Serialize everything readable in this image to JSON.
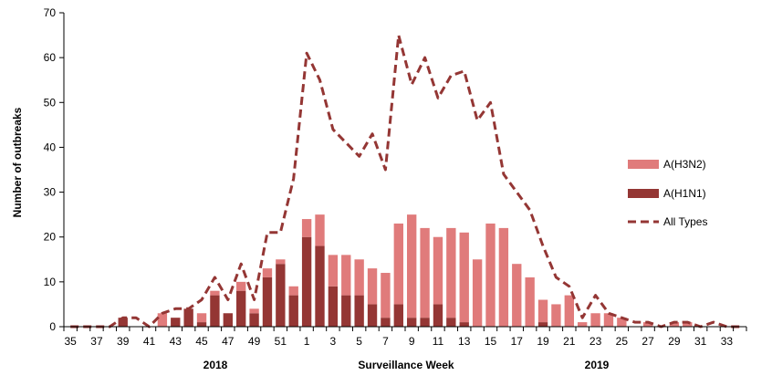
{
  "chart_data": {
    "type": "bar",
    "ylabel": "Number of outbreaks",
    "xlabel": "Surveillance Week",
    "year_labels": [
      "2018",
      "2019"
    ],
    "ylim": [
      0,
      70
    ],
    "yticks": [
      0,
      10,
      20,
      30,
      40,
      50,
      60,
      70
    ],
    "categories": [
      "35",
      "36",
      "37",
      "38",
      "39",
      "40",
      "41",
      "42",
      "43",
      "44",
      "45",
      "46",
      "47",
      "48",
      "49",
      "50",
      "51",
      "52",
      "1",
      "2",
      "3",
      "4",
      "5",
      "6",
      "7",
      "8",
      "9",
      "10",
      "11",
      "12",
      "13",
      "14",
      "15",
      "16",
      "17",
      "18",
      "19",
      "20",
      "21",
      "22",
      "23",
      "24",
      "25",
      "26",
      "27",
      "28",
      "29",
      "30",
      "31",
      "32",
      "33",
      "34"
    ],
    "tick_labels": [
      "35",
      "37",
      "39",
      "41",
      "43",
      "45",
      "47",
      "49",
      "51",
      "1",
      "3",
      "5",
      "7",
      "9",
      "11",
      "13",
      "15",
      "17",
      "19",
      "21",
      "23",
      "25",
      "27",
      "29",
      "31",
      "33"
    ],
    "legend_position": "right",
    "series": [
      {
        "name": "A(H1N1)",
        "kind": "stacked-bar",
        "color": "#943634",
        "values": [
          0,
          0,
          0,
          0,
          2,
          0,
          0,
          0,
          2,
          4,
          1,
          7,
          3,
          8,
          3,
          11,
          14,
          7,
          20,
          18,
          9,
          7,
          7,
          5,
          2,
          5,
          2,
          2,
          5,
          2,
          1,
          0,
          0,
          0,
          0,
          0,
          1,
          0,
          0,
          0,
          0,
          0,
          0,
          0,
          0,
          0,
          0,
          0,
          0,
          0,
          0,
          0
        ]
      },
      {
        "name": "A(H3N2)",
        "kind": "stacked-bar",
        "color": "#e07b7b",
        "values": [
          0,
          0,
          0,
          0,
          0,
          0,
          0,
          3,
          0,
          0,
          2,
          1,
          0,
          2,
          1,
          2,
          1,
          2,
          4,
          7,
          7,
          9,
          8,
          8,
          10,
          18,
          23,
          20,
          15,
          20,
          20,
          15,
          23,
          22,
          14,
          11,
          5,
          5,
          7,
          1,
          3,
          3,
          2,
          0,
          1,
          0,
          1,
          1,
          0,
          0,
          0,
          0
        ]
      },
      {
        "name": "All Types",
        "kind": "line",
        "color": "#943634",
        "values": [
          0,
          0,
          0,
          0,
          2,
          2,
          0,
          3,
          4,
          4,
          6,
          11,
          6,
          14,
          6,
          21,
          21,
          33,
          61,
          55,
          44,
          41,
          38,
          43,
          35,
          65,
          54,
          60,
          51,
          56,
          57,
          46,
          50,
          34,
          30,
          26,
          18,
          11,
          9,
          2,
          7,
          3,
          2,
          1,
          1,
          0,
          1,
          1,
          0,
          1,
          0,
          0
        ]
      }
    ],
    "legend": [
      {
        "label": "A(H3N2)",
        "kind": "bar",
        "color": "#e07b7b"
      },
      {
        "label": "A(H1N1)",
        "kind": "bar",
        "color": "#943634"
      },
      {
        "label": "All Types",
        "kind": "dash",
        "color": "#943634"
      }
    ]
  }
}
